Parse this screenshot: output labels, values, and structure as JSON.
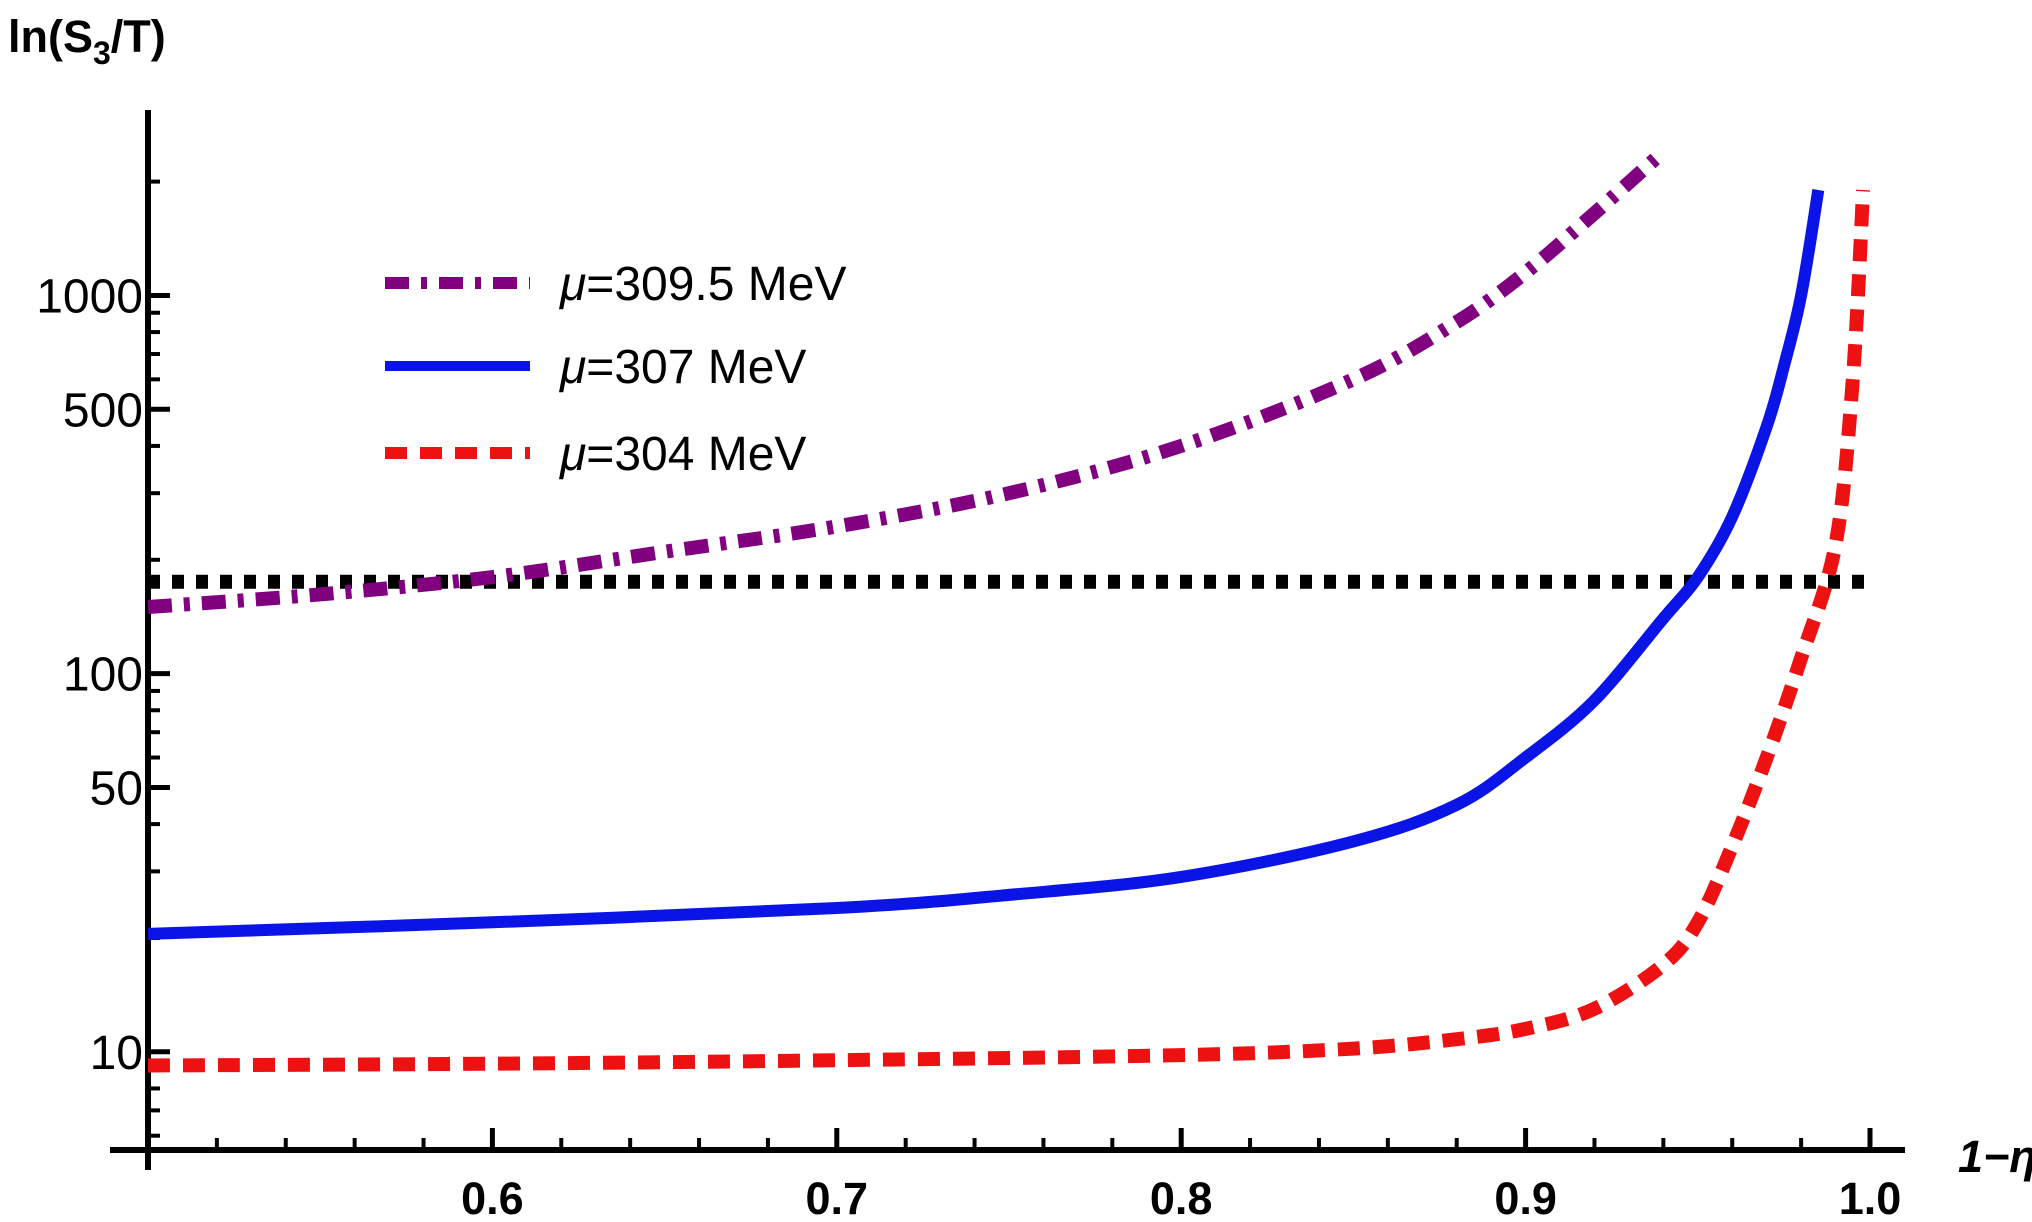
{
  "chart_data": {
    "type": "line",
    "title": "",
    "ylabel": "ln(S",
    "ylabel_sub": "3",
    "ylabel_tail": "/T)",
    "xlabel": "1−η",
    "y_scale": "log",
    "xlim": [
      0.5,
      1.0
    ],
    "ylim": [
      5.5,
      3000
    ],
    "x_ticks": [
      {
        "value": 0.6,
        "label": "0.6"
      },
      {
        "value": 0.7,
        "label": "0.7"
      },
      {
        "value": 0.8,
        "label": "0.8"
      },
      {
        "value": 0.9,
        "label": "0.9"
      },
      {
        "value": 1.0,
        "label": "1.0"
      }
    ],
    "y_ticks": [
      {
        "value": 10,
        "label": "10"
      },
      {
        "value": 50,
        "label": "50"
      },
      {
        "value": 100,
        "label": "100"
      },
      {
        "value": 500,
        "label": "500"
      },
      {
        "value": 1000,
        "label": "1000"
      }
    ],
    "legend_position": "top-left",
    "grid": false,
    "reference_line": {
      "y": 175,
      "color": "#000000",
      "style": "dotted"
    },
    "series": [
      {
        "name_prefix": "μ",
        "name": "=309.5 MeV",
        "color": "#800080",
        "style": "dashdot",
        "x": [
          0.5,
          0.55,
          0.6,
          0.65,
          0.7,
          0.75,
          0.8,
          0.85,
          0.88,
          0.9,
          0.92,
          0.94
        ],
        "y": [
          150,
          162,
          180,
          210,
          245,
          300,
          400,
          600,
          850,
          1150,
          1650,
          2400
        ]
      },
      {
        "name_prefix": "μ",
        "name": "=307 MeV",
        "color": "#0a14e6",
        "style": "solid",
        "x": [
          0.5,
          0.6,
          0.7,
          0.75,
          0.8,
          0.85,
          0.88,
          0.9,
          0.92,
          0.94,
          0.95,
          0.96,
          0.97,
          0.975,
          0.98,
          0.985
        ],
        "y": [
          20.5,
          22,
          24,
          26,
          29,
          36,
          45,
          60,
          85,
          140,
          180,
          260,
          450,
          650,
          1000,
          1900
        ]
      },
      {
        "name_prefix": "μ",
        "name": "=304 MeV",
        "color": "#ee1111",
        "style": "dashed",
        "x": [
          0.5,
          0.6,
          0.7,
          0.8,
          0.85,
          0.88,
          0.9,
          0.92,
          0.94,
          0.95,
          0.96,
          0.97,
          0.98,
          0.99,
          0.995,
          0.998
        ],
        "y": [
          9.2,
          9.3,
          9.5,
          9.8,
          10.2,
          10.8,
          11.5,
          13,
          17,
          22,
          35,
          60,
          110,
          220,
          600,
          1900
        ]
      }
    ]
  }
}
